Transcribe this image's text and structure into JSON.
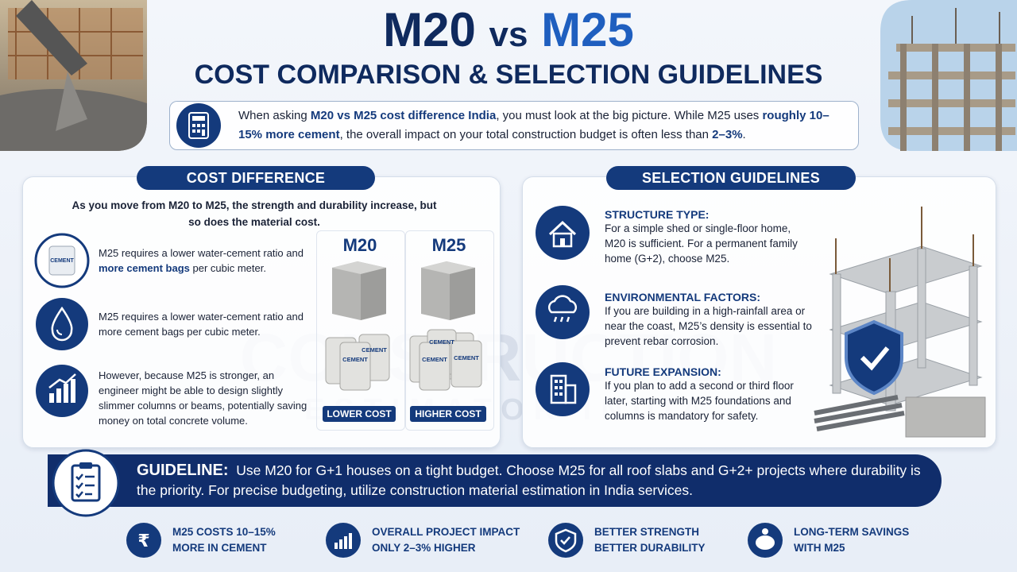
{
  "header": {
    "title_part1": "M20",
    "title_vs": "vs",
    "title_part2": "M25",
    "subtitle": "COST COMPARISON & SELECTION GUIDELINES"
  },
  "intro": {
    "segments": [
      "When asking ",
      "M20 vs M25 cost difference India",
      ", you must look at the big picture. While M25 uses ",
      "roughly 10–15% more cement",
      ", the overall impact on your total construction budget is often less than ",
      "2–3%",
      "."
    ]
  },
  "cost_difference": {
    "heading": "COST DIFFERENCE",
    "lead": "As you move from M20 to M25, the strength and durability increase, but so does the material cost.",
    "points": [
      {
        "segments": [
          "M25 requires a lower water-cement ratio and ",
          "more cement bags",
          " per cubic meter."
        ]
      },
      {
        "text": "M25 requires a lower water-cement ratio and more cement bags per cubic meter."
      },
      {
        "text": "However, because M25 is stronger, an engineer might be able to design slightly slimmer columns or beams, potentially saving money on total concrete volume."
      }
    ],
    "bag_label": "CEMENT",
    "comparison": [
      {
        "grade": "M20",
        "label": "LOWER COST"
      },
      {
        "grade": "M25",
        "label": "HIGHER COST"
      }
    ]
  },
  "selection_guidelines": {
    "heading": "SELECTION GUIDELINES",
    "items": [
      {
        "title": "STRUCTURE TYPE:",
        "text": "For a simple shed or single-floor home, M20 is sufficient. For a permanent family home (G+2), choose M25."
      },
      {
        "title": "ENVIRONMENTAL FACTORS:",
        "text": "If you are building in a high-rainfall area or near the coast, M25’s density is essential to prevent rebar corrosion."
      },
      {
        "title": "FUTURE EXPANSION:",
        "text": "If you plan to add a second or third floor later, starting with M25 foundations and columns is mandatory for safety."
      }
    ]
  },
  "guideline": {
    "label": "GUIDELINE:",
    "text": "Use M20 for G+1 houses on a tight budget. Choose M25 for all roof slabs and G+2+ projects where durability is the priority. For precise budgeting, utilize construction material estimation in India services."
  },
  "footer": [
    {
      "lines": [
        "M25 COSTS 10–15%",
        "MORE IN CEMENT"
      ]
    },
    {
      "lines": [
        "OVERALL PROJECT IMPACT",
        "ONLY 2–3% HIGHER"
      ]
    },
    {
      "lines": [
        "BETTER STRENGTH",
        "BETTER DURABILITY"
      ]
    },
    {
      "lines": [
        "LONG-TERM SAVINGS",
        "WITH M25"
      ]
    }
  ],
  "watermark": {
    "line1": "CONSTRUCTION",
    "line2": "ESTIMATOR INDIA"
  }
}
